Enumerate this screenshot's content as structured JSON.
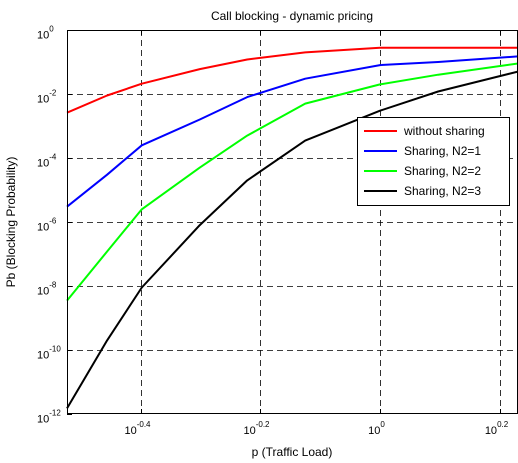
{
  "chart_data": {
    "type": "line",
    "title": "Call blocking - dynamic pricing",
    "xlabel": "p (Traffic Load)",
    "ylabel": "Pb (Blocking Probability)",
    "xscale": "log",
    "yscale": "log",
    "xlim": [
      0.3,
      1.7
    ],
    "ylim": [
      1e-12,
      1
    ],
    "xticks": [
      {
        "value": 0.3981,
        "base": "10",
        "exp": "-0.4"
      },
      {
        "value": 0.631,
        "base": "10",
        "exp": "-0.2"
      },
      {
        "value": 1.0,
        "base": "10",
        "exp": "0"
      },
      {
        "value": 1.585,
        "base": "10",
        "exp": "0.2"
      }
    ],
    "yticks": [
      {
        "value": 1e-12,
        "base": "10",
        "exp": "-12"
      },
      {
        "value": 1e-10,
        "base": "10",
        "exp": "-10"
      },
      {
        "value": 1e-08,
        "base": "10",
        "exp": "-8"
      },
      {
        "value": 1e-06,
        "base": "10",
        "exp": "-6"
      },
      {
        "value": 0.0001,
        "base": "10",
        "exp": "-4"
      },
      {
        "value": 0.01,
        "base": "10",
        "exp": "-2"
      },
      {
        "value": 1,
        "base": "10",
        "exp": "0"
      }
    ],
    "grid": true,
    "legend_position": "right",
    "series": [
      {
        "name": "without sharing",
        "color": "#ff0000",
        "x": [
          0.3,
          0.35,
          0.4,
          0.5,
          0.6,
          0.75,
          1.0,
          1.25,
          1.7
        ],
        "y": [
          0.0026,
          0.009,
          0.021,
          0.06,
          0.12,
          0.2,
          0.28,
          0.28,
          0.28
        ]
      },
      {
        "name": "Sharing, N2=1",
        "color": "#0000ff",
        "x": [
          0.3,
          0.35,
          0.4,
          0.5,
          0.6,
          0.75,
          1.0,
          1.25,
          1.7
        ],
        "y": [
          3e-06,
          3e-05,
          0.00025,
          0.0016,
          0.008,
          0.03,
          0.08,
          0.1,
          0.15
        ]
      },
      {
        "name": "Sharing, N2=2",
        "color": "#00ff00",
        "x": [
          0.3,
          0.35,
          0.4,
          0.5,
          0.6,
          0.75,
          1.0,
          1.25,
          1.7
        ],
        "y": [
          3.5e-09,
          1.2e-07,
          2.5e-06,
          5e-05,
          0.0005,
          0.005,
          0.02,
          0.04,
          0.09
        ]
      },
      {
        "name": "Sharing, N2=3",
        "color": "#000000",
        "x": [
          0.3,
          0.35,
          0.4,
          0.5,
          0.6,
          0.75,
          1.0,
          1.25,
          1.7
        ],
        "y": [
          1.5e-12,
          2e-10,
          9e-09,
          8e-07,
          2e-05,
          0.00035,
          0.003,
          0.012,
          0.05
        ]
      }
    ]
  }
}
